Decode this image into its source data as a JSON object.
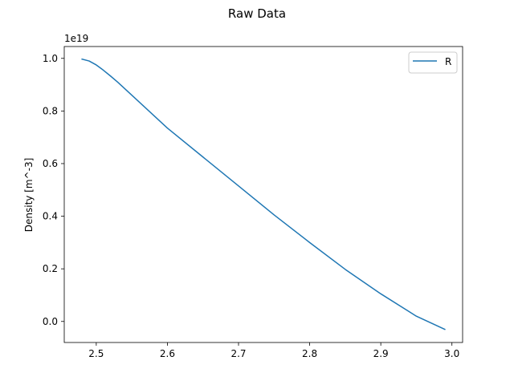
{
  "chart_data": {
    "type": "line",
    "title": "Raw Data",
    "xlabel": "",
    "ylabel": "Density [m^-3]",
    "y_offset_label": "1e19",
    "xlim": [
      2.455,
      3.015
    ],
    "ylim": [
      -0.08,
      1.045
    ],
    "x_ticks": [
      2.5,
      2.6,
      2.7,
      2.8,
      2.9,
      3.0
    ],
    "x_tick_labels": [
      "2.5",
      "2.6",
      "2.7",
      "2.8",
      "2.9",
      "3.0"
    ],
    "y_ticks": [
      0.0,
      0.2,
      0.4,
      0.6,
      0.8,
      1.0
    ],
    "y_tick_labels": [
      "0.0",
      "0.2",
      "0.4",
      "0.6",
      "0.8",
      "1.0"
    ],
    "grid": false,
    "legend_position": "top-right",
    "series": [
      {
        "name": "R",
        "color": "#1f77b4",
        "x": [
          2.48,
          2.49,
          2.5,
          2.51,
          2.52,
          2.53,
          2.55,
          2.6,
          2.65,
          2.7,
          2.75,
          2.8,
          2.85,
          2.9,
          2.95,
          2.99
        ],
        "y": [
          0.997,
          0.99,
          0.975,
          0.955,
          0.933,
          0.91,
          0.86,
          0.735,
          0.625,
          0.515,
          0.405,
          0.3,
          0.198,
          0.105,
          0.02,
          -0.03
        ]
      }
    ]
  }
}
